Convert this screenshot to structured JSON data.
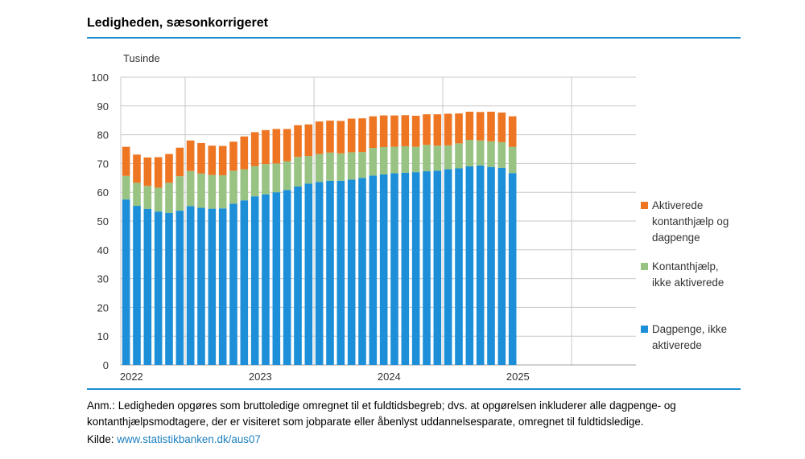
{
  "header": {
    "title": "Ledigheden, sæsonkorrigeret"
  },
  "chart_data": {
    "type": "bar",
    "stacked": true,
    "ylabel": "Tusinde",
    "ylim": [
      0,
      100
    ],
    "yticks": [
      0,
      10,
      20,
      30,
      40,
      50,
      60,
      70,
      80,
      90,
      100
    ],
    "grid": true,
    "x_periods": [
      "2021M07",
      "2021M08",
      "2021M09",
      "2021M10",
      "2021M11",
      "2021M12",
      "2022M01",
      "2022M02",
      "2022M03",
      "2022M04",
      "2022M05",
      "2022M06",
      "2022M07",
      "2022M08",
      "2022M09",
      "2022M10",
      "2022M11",
      "2022M12",
      "2023M01",
      "2023M02",
      "2023M03",
      "2023M04",
      "2023M05",
      "2023M06",
      "2023M07",
      "2023M08",
      "2023M09",
      "2023M10",
      "2023M11",
      "2023M12",
      "2024M01",
      "2024M02",
      "2024M03",
      "2024M04",
      "2024M05",
      "2024M06",
      "2024M07"
    ],
    "x_axis_range": [
      "2021M07",
      "2025M06"
    ],
    "year_labels": [
      {
        "label": "2022",
        "start": "2022M01"
      },
      {
        "label": "2023",
        "start": "2023M01"
      },
      {
        "label": "2024",
        "start": "2024M01"
      },
      {
        "label": "2025",
        "start": "2025M01"
      }
    ],
    "series": [
      {
        "name": "Dagpenge, ikke aktiverede",
        "color": "#1c8fd8",
        "values": [
          57.5,
          55.3,
          54.2,
          53.3,
          52.8,
          53.6,
          55.2,
          54.6,
          54.3,
          54.4,
          56.0,
          57.2,
          58.6,
          59.3,
          60.0,
          60.8,
          62.0,
          63.0,
          63.6,
          64.0,
          64.0,
          64.4,
          65.0,
          65.8,
          66.2,
          66.6,
          66.8,
          67.0,
          67.3,
          67.5,
          68.0,
          68.3,
          69.0,
          69.3,
          68.8,
          68.5,
          66.7
        ]
      },
      {
        "name": "Kontanthjælp, ikke aktiverede",
        "color": "#98c383",
        "values": [
          8.2,
          8.0,
          8.0,
          8.3,
          10.5,
          12.0,
          12.2,
          11.9,
          11.7,
          11.5,
          11.5,
          10.8,
          10.5,
          10.5,
          10.0,
          10.0,
          10.3,
          9.6,
          9.7,
          9.8,
          9.5,
          9.5,
          9.0,
          9.6,
          9.5,
          9.2,
          9.2,
          8.8,
          9.2,
          8.7,
          8.3,
          8.7,
          9.2,
          8.7,
          8.9,
          8.9,
          9.1
        ]
      },
      {
        "name": "Aktiverede kontanthjælp og dagpenge",
        "color": "#ee7623",
        "values": [
          10.1,
          9.8,
          9.9,
          10.6,
          10.0,
          9.9,
          10.6,
          10.6,
          10.2,
          10.2,
          10.1,
          11.4,
          11.8,
          11.8,
          12.0,
          11.2,
          11.0,
          11.0,
          11.3,
          11.1,
          11.3,
          11.7,
          11.7,
          11.0,
          11.0,
          10.9,
          10.8,
          10.8,
          10.6,
          10.9,
          11.0,
          10.4,
          9.8,
          9.9,
          10.3,
          10.3,
          10.6
        ]
      }
    ],
    "legend": {
      "position": "right",
      "order": [
        "Aktiverede kontanthjælp og dagpenge",
        "Kontanthjælp, ikke aktiverede",
        "Dagpenge, ikke aktiverede"
      ]
    }
  },
  "footer": {
    "note": "Anm.: Ledigheden opgøres som bruttoledige omregnet til et fuldtidsbegreb; dvs. at opgørelsen inkluderer alle dagpenge- og kontanthjælpsmodtagere, der er visiteret som jobparate eller åbenlyst uddannelsesparate, omregnet til fuldtidsledige.",
    "source_prefix": "Kilde: ",
    "source_link": "www.statistikbanken.dk/aus07"
  }
}
